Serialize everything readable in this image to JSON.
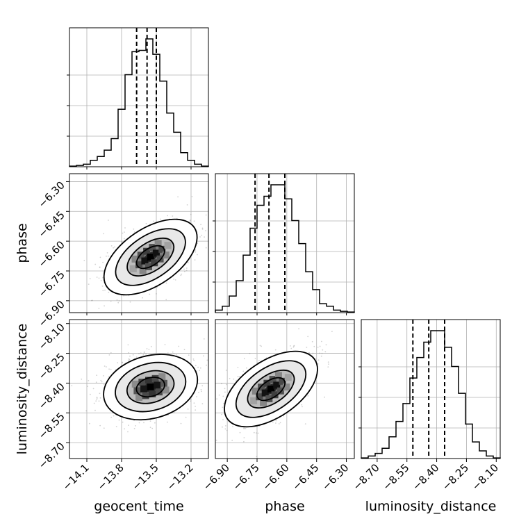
{
  "chart_data": {
    "type": "corner",
    "parameters": [
      {
        "name": "geocent_time",
        "ticks": [
          "−14.1",
          "−13.8",
          "−13.5",
          "−13.2"
        ],
        "range": [
          -14.25,
          -13.05
        ],
        "quantiles": [
          -13.67,
          -13.58,
          -13.5
        ],
        "hist": [
          0.005,
          0.01,
          0.02,
          0.05,
          0.08,
          0.13,
          0.22,
          0.45,
          0.72,
          0.9,
          0.91,
          1.0,
          0.88,
          0.67,
          0.42,
          0.27,
          0.11,
          0.05,
          0.02,
          0.005
        ]
      },
      {
        "name": "phase",
        "ticks": [
          "−6.90",
          "−6.75",
          "−6.60",
          "−6.45",
          "−6.30"
        ],
        "range": [
          -6.96,
          -6.26
        ],
        "quantiles": [
          -6.76,
          -6.69,
          -6.61
        ],
        "hist": [
          0.02,
          0.05,
          0.13,
          0.25,
          0.45,
          0.66,
          0.84,
          0.91,
          1.0,
          1.0,
          0.89,
          0.72,
          0.54,
          0.32,
          0.18,
          0.07,
          0.05,
          0.02,
          0.01,
          0.005
        ]
      },
      {
        "name": "luminosity_distance",
        "ticks": [
          "−8.70",
          "−8.55",
          "−8.40",
          "−8.25",
          "−8.10"
        ],
        "range": [
          -8.78,
          -8.08
        ],
        "quantiles": [
          -8.52,
          -8.44,
          -8.36
        ],
        "hist": [
          0.005,
          0.02,
          0.04,
          0.08,
          0.17,
          0.29,
          0.43,
          0.63,
          0.79,
          0.91,
          1.0,
          1.0,
          0.87,
          0.72,
          0.51,
          0.27,
          0.13,
          0.06,
          0.02,
          0.005
        ]
      }
    ],
    "pairs": [
      {
        "x": "geocent_time",
        "y": "phase",
        "peak": [
          -13.55,
          -6.68
        ],
        "corr": 0.6
      },
      {
        "x": "geocent_time",
        "y": "luminosity_distance",
        "peak": [
          -13.55,
          -8.42
        ],
        "corr": 0.25
      },
      {
        "x": "phase",
        "y": "luminosity_distance",
        "peak": [
          -6.68,
          -8.43
        ],
        "corr": 0.6
      }
    ],
    "grid": true,
    "colors": {
      "line": "#000000",
      "points": "#7f7f7f",
      "grid": "#b0b0b0"
    }
  }
}
